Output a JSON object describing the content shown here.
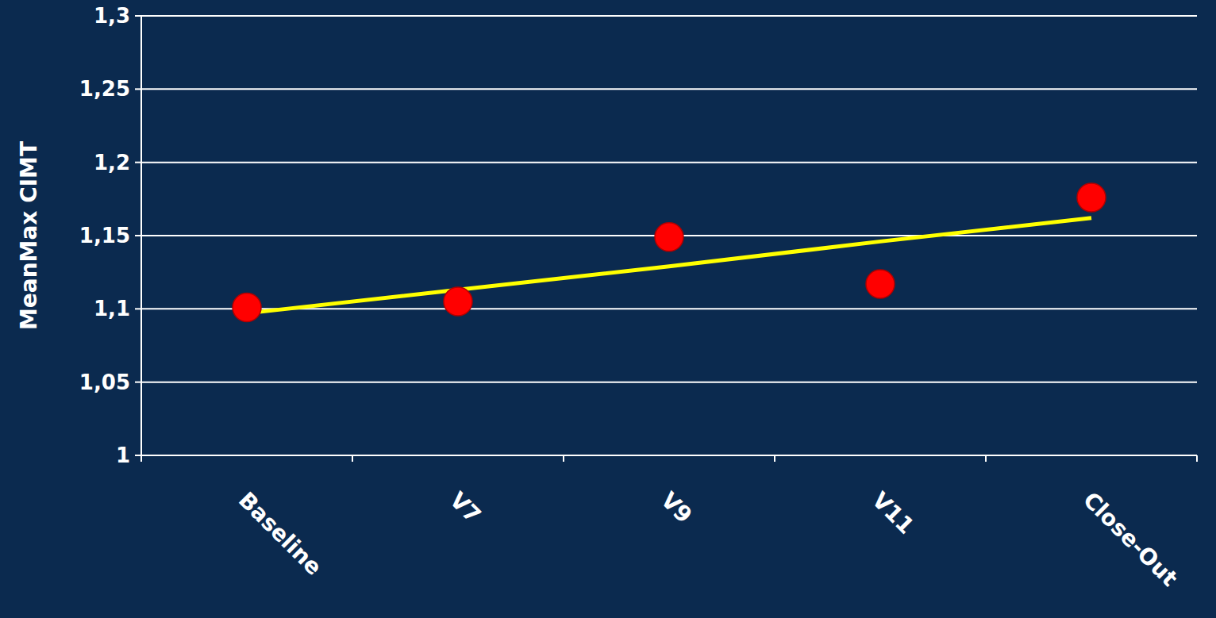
{
  "chart_data": {
    "type": "scatter",
    "y_label": "MeanMax CIMT",
    "categories": [
      "Baseline",
      "V7",
      "V9",
      "V11",
      "Close-Out"
    ],
    "series": [
      {
        "type": "scatter",
        "color": "#ff0000",
        "marker": "circle",
        "values": [
          1.101,
          1.105,
          1.149,
          1.117,
          1.176
        ]
      },
      {
        "type": "line",
        "color": "#ffff00",
        "line_style": "solid",
        "values": [
          1.097,
          1.113,
          1.129,
          1.146,
          1.162
        ]
      }
    ],
    "ylim": [
      1,
      1.3
    ],
    "yticks": [
      1,
      {
        "value": 1.05,
        "label": "1,05"
      },
      {
        "value": 1.1,
        "label": "1,1"
      },
      {
        "value": 1.15,
        "label": "1,15"
      },
      {
        "value": 1.2,
        "label": "1,2"
      },
      {
        "value": 1.25,
        "label": "1,25"
      },
      {
        "value": 1.3,
        "label": "1,3"
      }
    ],
    "grid": true
  }
}
